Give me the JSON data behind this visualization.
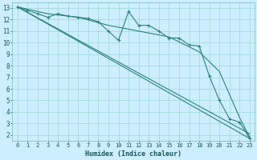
{
  "title": "",
  "xlabel": "Humidex (Indice chaleur)",
  "bg_color": "#cceeff",
  "grid_color": "#aadddd",
  "line_color": "#2e7f7f",
  "xlim": [
    -0.5,
    23.5
  ],
  "ylim": [
    1.5,
    13.5
  ],
  "xticks": [
    0,
    1,
    2,
    3,
    4,
    5,
    6,
    7,
    8,
    9,
    10,
    11,
    12,
    13,
    14,
    15,
    16,
    17,
    18,
    19,
    20,
    21,
    22,
    23
  ],
  "yticks": [
    2,
    3,
    4,
    5,
    6,
    7,
    8,
    9,
    10,
    11,
    12,
    13
  ],
  "line1_x": [
    0,
    1,
    2,
    3,
    4,
    5,
    6,
    7,
    8,
    9,
    10,
    11,
    12,
    13,
    14,
    15,
    16,
    17,
    18,
    19,
    20,
    21,
    22,
    23
  ],
  "line1_y": [
    13.1,
    12.8,
    12.5,
    12.2,
    12.5,
    12.3,
    12.2,
    12.1,
    11.8,
    11.0,
    10.2,
    12.7,
    11.5,
    11.5,
    11.0,
    10.4,
    10.4,
    9.8,
    9.7,
    7.1,
    5.0,
    3.4,
    3.1,
    1.7
  ],
  "line2_x": [
    0,
    23
  ],
  "line2_y": [
    13.1,
    2.1
  ],
  "line3_x": [
    0,
    23
  ],
  "line3_y": [
    13.1,
    1.7
  ],
  "line4_x": [
    0,
    3,
    6,
    9,
    12,
    15,
    18,
    20,
    22,
    23
  ],
  "line4_y": [
    13.1,
    12.5,
    12.2,
    11.5,
    11.0,
    10.5,
    9.2,
    7.5,
    3.5,
    1.8
  ]
}
